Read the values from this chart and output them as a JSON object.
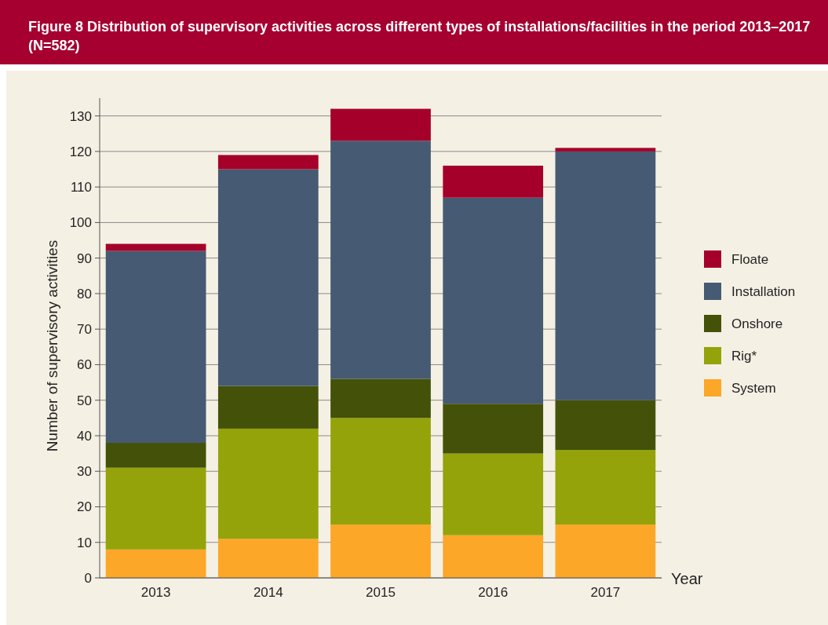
{
  "chart_data": {
    "type": "bar",
    "title": "Figure 8 Distribution of supervisory activities across different types of installations/facilities in the period 2013–2017 (N=582)",
    "xlabel": "Year",
    "ylabel": "Number of supervisory activities",
    "categories": [
      "2013",
      "2014",
      "2015",
      "2016",
      "2017"
    ],
    "stacked": true,
    "series": [
      {
        "name": "System",
        "color": "#fca728",
        "values": [
          8,
          11,
          15,
          12,
          15
        ]
      },
      {
        "name": "Rig*",
        "color": "#94a30a",
        "values": [
          23,
          31,
          30,
          23,
          21
        ]
      },
      {
        "name": "Onshore",
        "color": "#435208",
        "values": [
          7,
          12,
          11,
          14,
          14
        ]
      },
      {
        "name": "Installation",
        "color": "#465a73",
        "values": [
          54,
          61,
          67,
          58,
          70
        ]
      },
      {
        "name": "Floate",
        "color": "#a5002a",
        "values": [
          2,
          4,
          9,
          9,
          1
        ]
      }
    ],
    "ylim": [
      0,
      135
    ],
    "yticks": [
      0,
      10,
      20,
      30,
      40,
      50,
      60,
      70,
      80,
      90,
      100,
      110,
      120,
      130
    ],
    "grid": "y",
    "legend": "right"
  }
}
